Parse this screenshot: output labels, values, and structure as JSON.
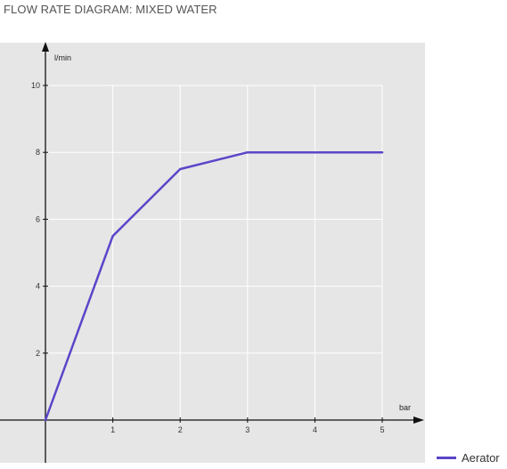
{
  "chart_data": {
    "type": "line",
    "title": "FLOW RATE DIAGRAM: MIXED WATER",
    "xlabel": "bar",
    "ylabel": "l/min",
    "xlim": [
      0,
      5
    ],
    "ylim": [
      0,
      10
    ],
    "x_ticks": [
      1,
      2,
      3,
      4,
      5
    ],
    "y_ticks": [
      2,
      4,
      6,
      8,
      10
    ],
    "grid": true,
    "legend_position": "bottom-right",
    "series": [
      {
        "name": "Aerator",
        "color": "#5b45c9",
        "x": [
          0,
          1,
          2,
          3,
          4,
          5
        ],
        "y": [
          0,
          5.5,
          7.5,
          8,
          8,
          8
        ]
      }
    ]
  },
  "colors": {
    "plot_background": "#e6e6e6",
    "grid": "#ffffff",
    "axis": "#111111"
  }
}
